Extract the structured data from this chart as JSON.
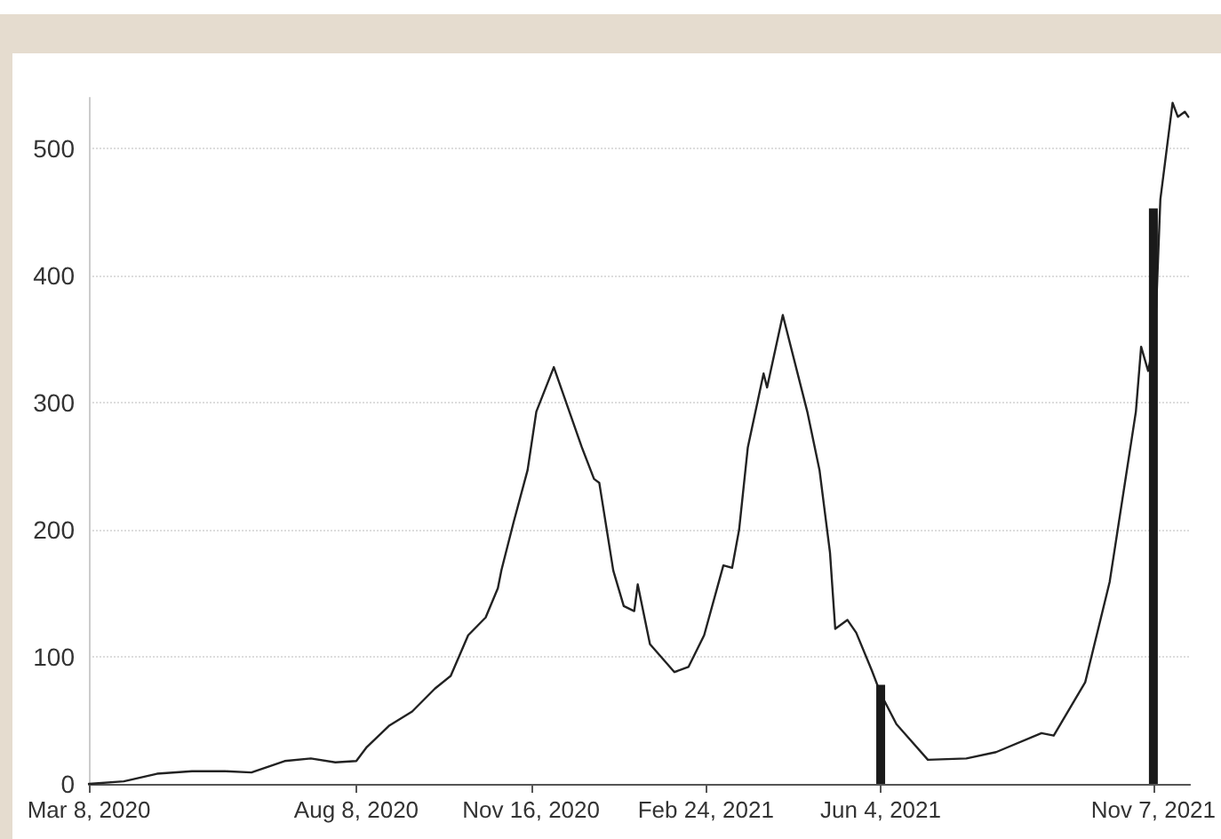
{
  "chart_data": {
    "type": "line",
    "xlim": [
      "2020-03-08",
      "2021-11-28"
    ],
    "xticks": [
      {
        "value": "2020-03-08",
        "label": "Mar 8, 2020"
      },
      {
        "value": "2020-08-08",
        "label": "Aug 8, 2020"
      },
      {
        "value": "2020-11-16",
        "label": "Nov 16, 2020"
      },
      {
        "value": "2021-02-24",
        "label": "Feb 24, 2021"
      },
      {
        "value": "2021-06-04",
        "label": "Jun 4, 2021"
      },
      {
        "value": "2021-11-07",
        "label": "Nov 7, 2021"
      }
    ],
    "ylim": [
      0,
      540
    ],
    "yticks": [
      0,
      100,
      200,
      300,
      400,
      500
    ],
    "grid": "y",
    "marker": "none",
    "line_style": "solid",
    "series": [
      {
        "color": "#222222",
        "x": [
          "2020-03-08",
          "2020-03-28",
          "2020-04-16",
          "2020-05-06",
          "2020-05-25",
          "2020-06-09",
          "2020-06-28",
          "2020-07-13",
          "2020-07-27",
          "2020-08-08",
          "2020-08-14",
          "2020-08-27",
          "2020-09-09",
          "2020-09-22",
          "2020-10-01",
          "2020-10-11",
          "2020-10-21",
          "2020-10-28",
          "2020-10-30",
          "2020-11-06",
          "2020-11-14",
          "2020-11-19",
          "2020-11-29",
          "2020-12-15",
          "2020-12-22",
          "2020-12-25",
          "2021-01-02",
          "2021-01-08",
          "2021-01-14",
          "2021-01-16",
          "2021-01-23",
          "2021-02-06",
          "2021-02-14",
          "2021-02-23",
          "2021-03-06",
          "2021-03-11",
          "2021-03-15",
          "2021-03-20",
          "2021-03-29",
          "2021-03-31",
          "2021-04-09",
          "2021-04-23",
          "2021-04-30",
          "2021-05-06",
          "2021-05-09",
          "2021-05-16",
          "2021-05-21",
          "2021-05-30",
          "2021-06-04",
          "2021-06-13",
          "2021-07-01",
          "2021-07-23",
          "2021-08-09",
          "2021-09-04",
          "2021-09-11",
          "2021-09-29",
          "2021-10-13",
          "2021-10-28",
          "2021-10-31",
          "2021-11-04",
          "2021-11-08",
          "2021-11-11",
          "2021-11-18",
          "2021-11-21",
          "2021-11-25",
          "2021-11-27"
        ],
        "values": [
          0,
          2,
          8,
          10,
          10,
          9,
          18,
          20,
          17,
          18,
          29,
          46,
          57,
          75,
          85,
          117,
          131,
          154,
          168,
          206,
          247,
          293,
          328,
          265,
          240,
          237,
          168,
          140,
          136,
          157,
          110,
          88,
          92,
          117,
          172,
          170,
          200,
          265,
          323,
          312,
          369,
          293,
          247,
          182,
          122,
          129,
          119,
          89,
          71,
          47,
          19,
          20,
          25,
          40,
          38,
          80,
          159,
          293,
          344,
          325,
          353,
          460,
          536,
          525,
          529,
          525
        ]
      },
      {
        "type": "bar",
        "color": "#1a1a1a",
        "x": [
          "2021-06-04",
          "2021-11-07"
        ],
        "values": [
          78,
          453
        ]
      }
    ]
  }
}
